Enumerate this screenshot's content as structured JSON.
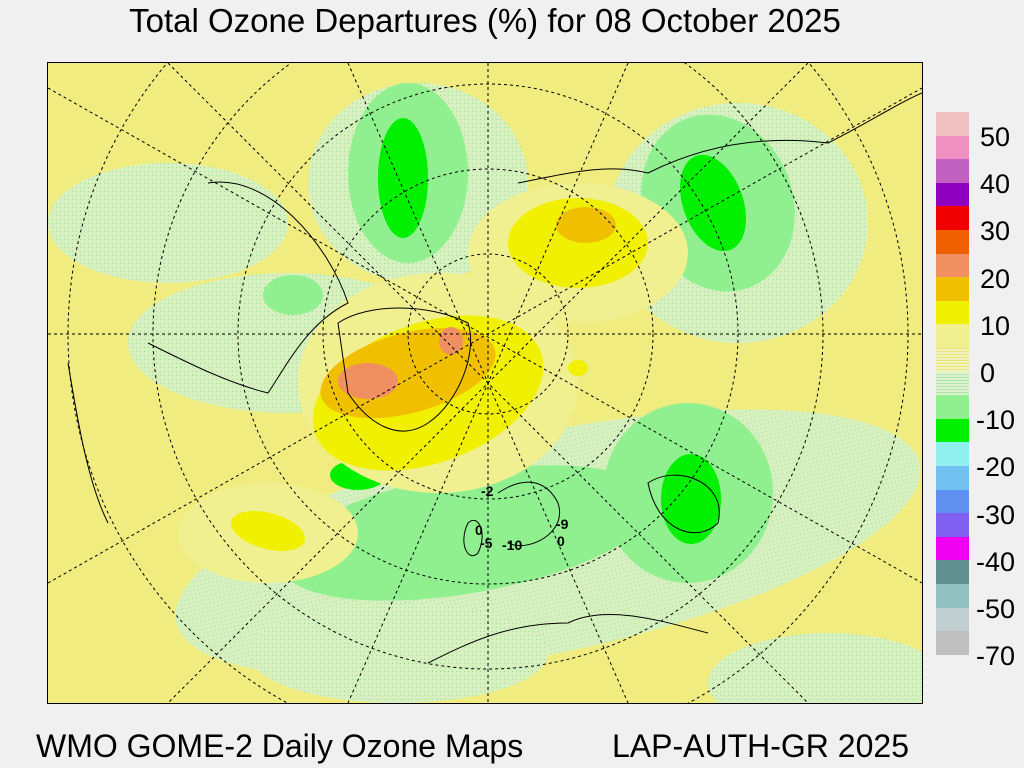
{
  "title": "Total Ozone Departures (%) for 08 October 2025",
  "footer": {
    "left": "WMO GOME-2 Daily Ozone Maps",
    "right": "LAP-AUTH-GR 2025"
  },
  "legend": {
    "colors": [
      "#f0c0c0",
      "#f090c0",
      "#c060c0",
      "#9000c0",
      "#f00000",
      "#f06000",
      "#f09060",
      "#f0c000",
      "#f0f000",
      "#f0f090",
      "dotted-yellow",
      "dotted-green",
      "#90f090",
      "#00f000",
      "#90f0f0",
      "#70c0f0",
      "#6090f0",
      "#8060f0",
      "#f000f0",
      "#609090",
      "#90c0c0",
      "#c0d0d0",
      "#c0c0c0"
    ],
    "labels": [
      "50",
      "40",
      "30",
      "20",
      "10",
      "0",
      "-10",
      "-20",
      "-30",
      "-40",
      "-50",
      "-70"
    ]
  },
  "station_labels": [
    "-2",
    "0",
    "-5",
    "-10",
    "-9",
    "0"
  ]
}
